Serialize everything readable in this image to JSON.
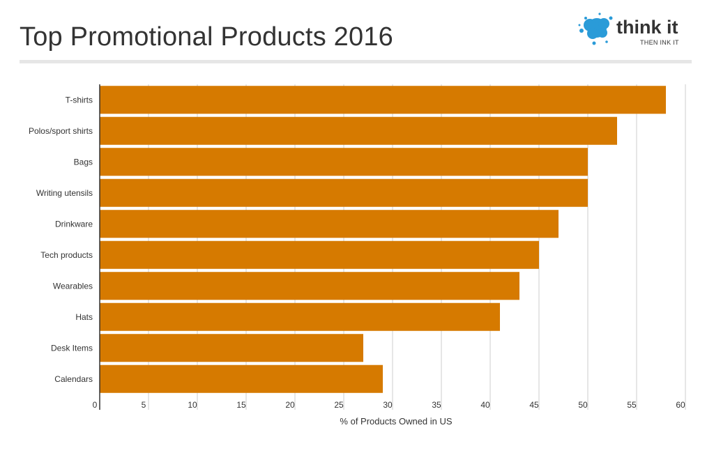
{
  "header": {
    "title": "Top Promotional Products 2016",
    "logo_text": "think it",
    "logo_tagline": "THEN INK IT"
  },
  "colors": {
    "bar": "#d67a00",
    "grid": "#cccccc",
    "axis": "#333333",
    "logo_blue": "#2a9bd8"
  },
  "chart_data": {
    "type": "bar",
    "orientation": "horizontal",
    "title": "Top Promotional Products 2016",
    "xlabel": "% of Products Owned in US",
    "ylabel": "",
    "categories": [
      "T-shirts",
      "Polos/sport shirts",
      "Bags",
      "Writing utensils",
      "Drinkware",
      "Tech products",
      "Wearables",
      "Hats",
      "Desk Items",
      "Calendars"
    ],
    "values": [
      58,
      53,
      50,
      50,
      47,
      45,
      43,
      41,
      27,
      29
    ],
    "xlim": [
      0,
      60
    ],
    "xticks": [
      0,
      5,
      10,
      15,
      20,
      25,
      30,
      35,
      40,
      45,
      50,
      55,
      60
    ],
    "grid": true,
    "legend": "none"
  }
}
